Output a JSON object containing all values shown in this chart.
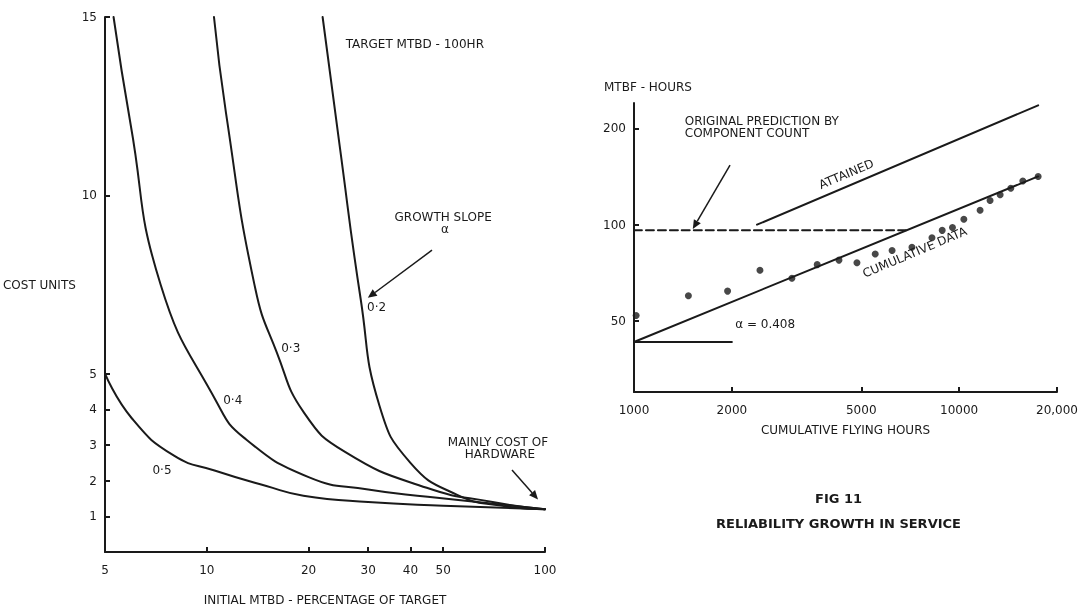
{
  "chart_data": [
    {
      "type": "line",
      "xlabel": "INITIAL MTBD - PERCENTAGE OF TARGET",
      "ylabel": "COST UNITS",
      "log": "x",
      "xlim": [
        5,
        100
      ],
      "xticks": [
        5,
        10,
        20,
        30,
        40,
        50,
        100
      ],
      "ylim": [
        0,
        15
      ],
      "yticks": [
        1,
        2,
        3,
        4,
        5,
        10,
        15
      ],
      "marker": "none",
      "line_style": "solid",
      "annotations": [
        "TARGET MTBD - 100HR",
        "GROWTH SLOPE α",
        "MAINLY COST OF HARDWARE"
      ],
      "series": [
        {
          "name": "0·2",
          "color": "#1a1a1a",
          "x": [
            22,
            24.7,
            28.5,
            32.4,
            40,
            55,
            74,
            100
          ],
          "values": [
            15,
            11.4,
            7.1,
            4.1,
            2.5,
            1.6,
            1.3,
            1.2
          ]
        },
        {
          "name": "0·3",
          "color": "#1a1a1a",
          "x": [
            10.5,
            11.4,
            13.9,
            16.1,
            19.4,
            25.7,
            44.7,
            70,
            100
          ],
          "values": [
            15,
            12.3,
            7.4,
            5.6,
            3.9,
            2.8,
            1.8,
            1.4,
            1.2
          ]
        },
        {
          "name": "0·4",
          "color": "#1a1a1a",
          "x": [
            5.3,
            5.95,
            7.3,
            10.7,
            12.9,
            20,
            30,
            45,
            100
          ],
          "values": [
            15,
            12,
            7.5,
            4.2,
            3.2,
            2.1,
            1.75,
            1.55,
            1.2
          ]
        },
        {
          "name": "0·5",
          "color": "#1a1a1a",
          "x": [
            5,
            6,
            8,
            10.6,
            15,
            19.3,
            30,
            50,
            100
          ],
          "values": [
            5,
            3.75,
            2.7,
            2.28,
            1.85,
            1.58,
            1.4,
            1.3,
            1.2
          ]
        }
      ]
    },
    {
      "type": "line",
      "title": "FIG 11",
      "subtitle": "RELIABILITY GROWTH IN SERVICE",
      "xlabel": "CUMULATIVE FLYING HOURS",
      "ylabel": "MTBF - HOURS",
      "log": "xy",
      "xlim": [
        1000,
        20000
      ],
      "xticks": [
        1000,
        2000,
        5000,
        10000,
        {
          "value": 20000,
          "label": "20,000"
        }
      ],
      "ylim": [
        30,
        240
      ],
      "yticks": [
        50,
        100,
        200
      ],
      "marker": "none",
      "line_style": "solid",
      "annotations": [
        "ORIGINAL PREDICTION BY COMPONENT COUNT",
        {
          "text": "ATTAINED",
          "x": 4500,
          "y": 131
        },
        {
          "text": "CUMULATIVE DATA",
          "x": 7000,
          "y": 96
        },
        "α = 0.408"
      ],
      "series": [
        {
          "color": "#1a1a1a",
          "x": [
            2390,
            17500
          ],
          "values": [
            100,
            236
          ]
        },
        {
          "color": "#1a1a1a",
          "line_style": "dashed",
          "x": [
            1000,
            6900
          ],
          "values": [
            96,
            96
          ]
        },
        {
          "color": "#1a1a1a",
          "x": [
            1000,
            17500
          ],
          "values": [
            43,
            141.5
          ]
        },
        {
          "color": "#1a1a1a",
          "x": [
            1000,
            2000
          ],
          "values": [
            43,
            43
          ]
        },
        {
          "type": "scatter",
          "marker": "circle",
          "color": "#1a1a1a",
          "x": [
            1015,
            1470,
            1940,
            2440,
            3060,
            3660,
            4270,
            4850,
            5520,
            6220,
            7160,
            8250,
            8870,
            9540,
            10340,
            11600,
            12450,
            13370,
            14420,
            15700,
            17500
          ],
          "values": [
            52,
            60,
            62,
            72,
            68,
            75,
            77.5,
            76,
            81,
            83,
            85,
            91,
            96,
            98,
            104,
            111,
            119,
            124,
            130,
            137,
            141.5
          ]
        }
      ]
    }
  ]
}
